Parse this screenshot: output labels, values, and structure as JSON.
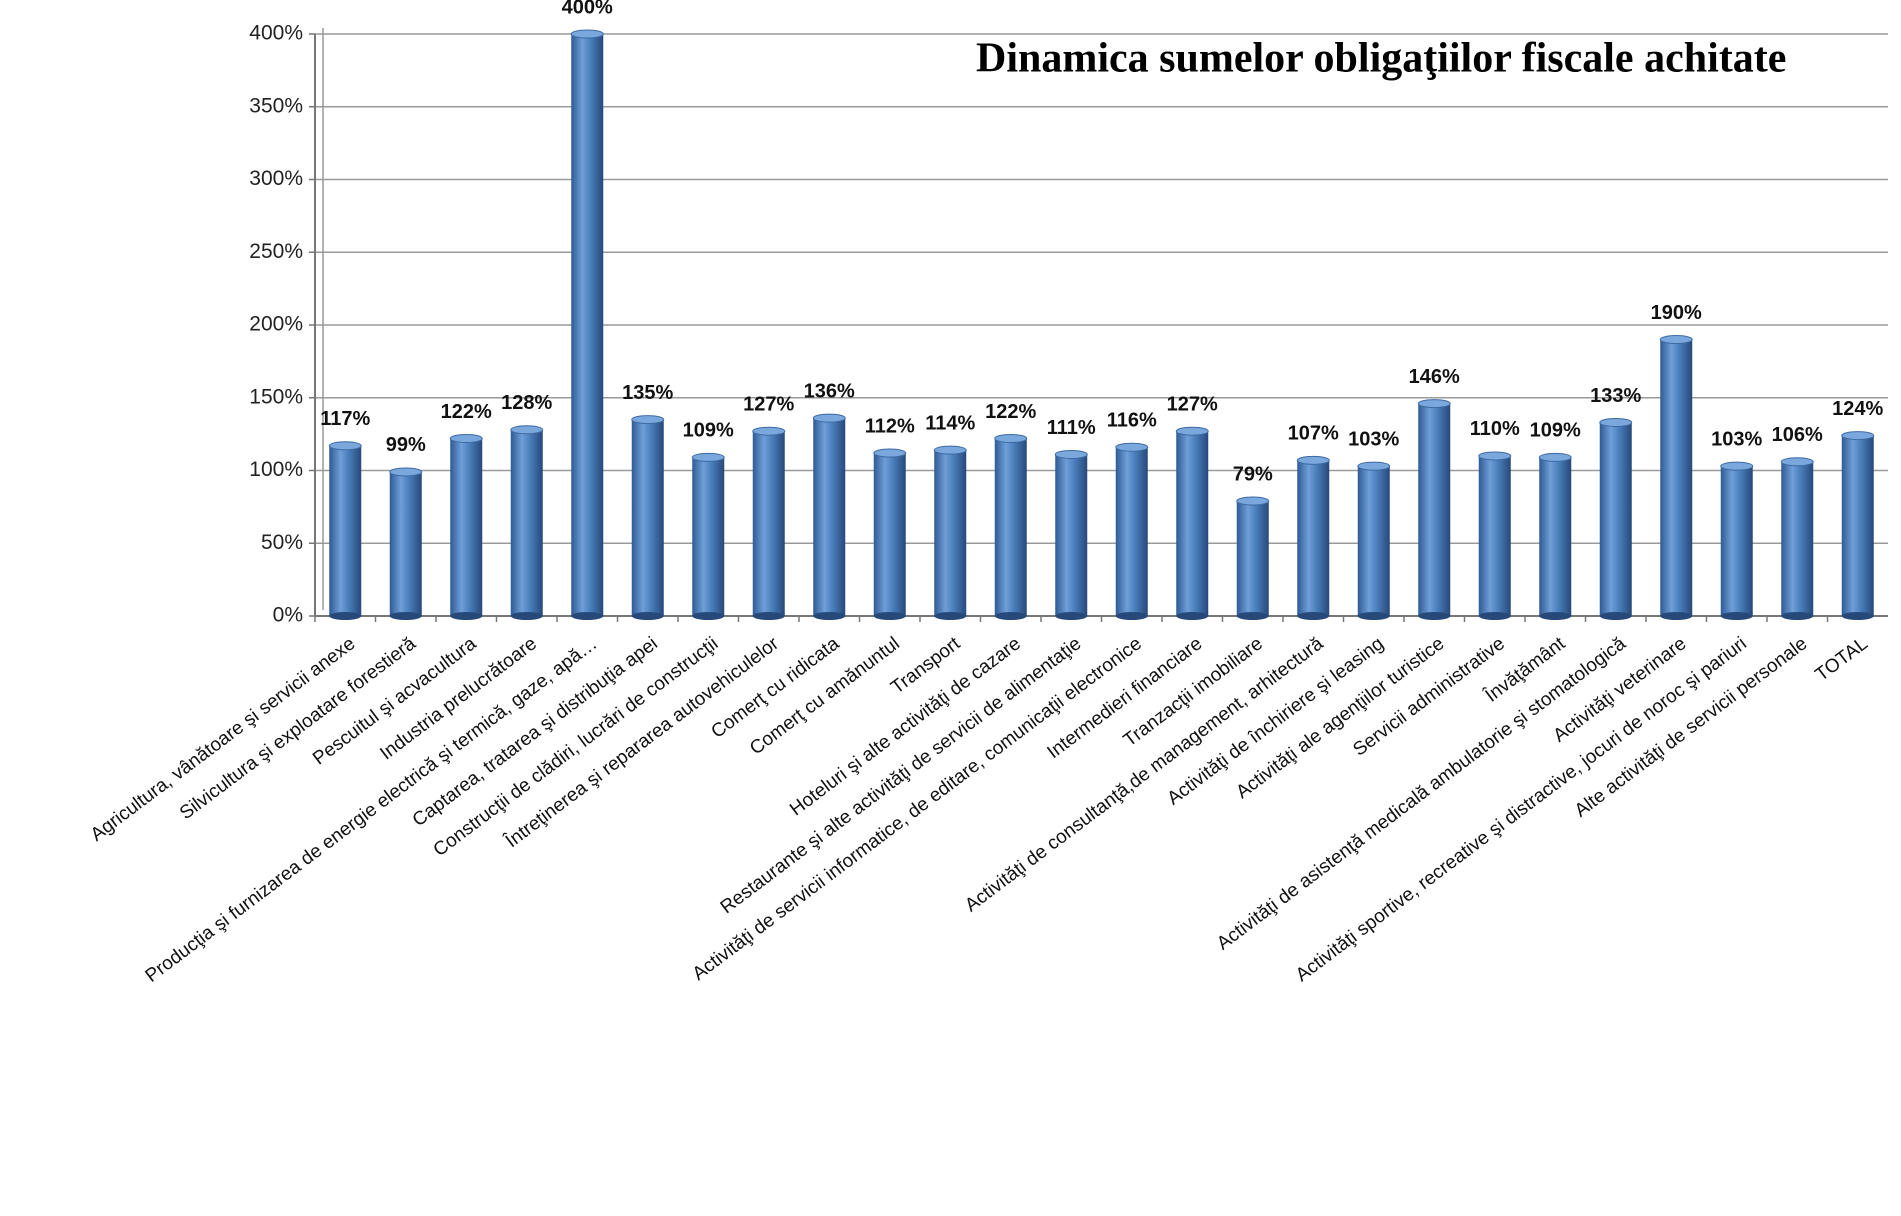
{
  "chart_data": {
    "type": "bar",
    "title": "Dinamica sumelor obligaţiilor fiscale achitate",
    "categories": [
      "Agricultura, vânătoare şi servicii anexe",
      "Silvicultura şi exploatare forestieră",
      "Pescuitul şi acvacultura",
      "Industria prelucrătoare",
      "Producţia şi furnizarea de energie electrică şi termică, gaze, apă…",
      "Captarea, tratarea şi distribuţia apei",
      "Construcţii de clădiri, lucrări de construcţii",
      "Întreţinerea şi repararea autovehiculelor",
      "Comerţ cu ridicata",
      "Comerţ cu amănuntul",
      "Transport",
      "Hoteluri şi alte activităţi de cazare",
      "Restaurante şi alte activităţi de servicii de alimentaţie",
      "Activităţi de servicii informatice, de editare, comunicaţii electronice",
      "Intermedieri financiare",
      "Tranzacţii imobiliare",
      "Activităţi de consultanţă,de management, arhitectură",
      "Activităţi de închiriere şi leasing",
      "Activităţi ale agenţiilor turistice",
      "Servicii administrative",
      "Învăţământ",
      "Activităţi de asistenţă medicală ambulatorie şi stomatologică",
      "Activităţi veterinare",
      "Activităţi sportive, recreative şi distractive, jocuri de noroc şi pariuri",
      "Alte activităţi de servicii personale",
      "TOTAL"
    ],
    "values": [
      117,
      99,
      122,
      128,
      400,
      135,
      109,
      127,
      136,
      112,
      114,
      122,
      111,
      116,
      127,
      79,
      107,
      103,
      146,
      110,
      109,
      133,
      190,
      103,
      106,
      124
    ],
    "value_labels": [
      "117%",
      "99%",
      "122%",
      "128%",
      "400%",
      "135%",
      "109%",
      "127%",
      "136%",
      "112%",
      "114%",
      "122%",
      "111%",
      "116%",
      "127%",
      "79%",
      "107%",
      "103%",
      "146%",
      "110%",
      "109%",
      "133%",
      "190%",
      "103%",
      "106%",
      "124%"
    ],
    "color": "#4a7ebb",
    "ylim": [
      0,
      400
    ],
    "yticks": [
      {
        "value": 0,
        "label": "0%"
      },
      {
        "value": 50,
        "label": "50%"
      },
      {
        "value": 100,
        "label": "100%"
      },
      {
        "value": 150,
        "label": "150%"
      },
      {
        "value": 200,
        "label": "200%"
      },
      {
        "value": 250,
        "label": "250%"
      },
      {
        "value": 300,
        "label": "300%"
      },
      {
        "value": 350,
        "label": "350%"
      },
      {
        "value": 400,
        "label": "400%"
      }
    ],
    "grid": true
  }
}
